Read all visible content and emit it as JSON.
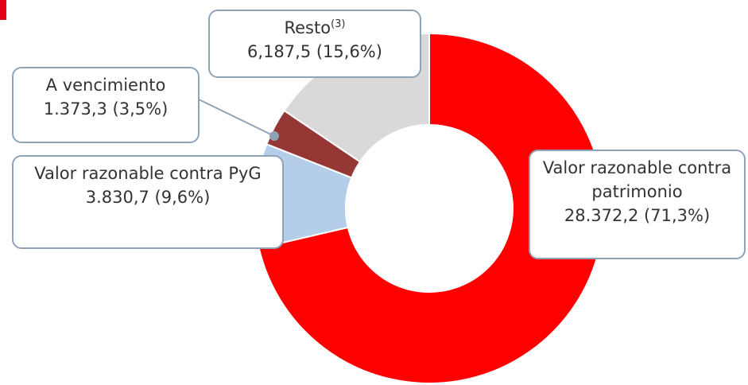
{
  "chart_data": {
    "type": "donut",
    "categories": [
      "Valor razonable contra patrimonio",
      "Valor razonable contra PyG",
      "A vencimiento",
      "Resto"
    ],
    "footnotes": [
      null,
      null,
      null,
      "(3)"
    ],
    "values": [
      28372.2,
      3830.7,
      1373.3,
      6187.5
    ],
    "value_labels": [
      "28.372,2 (71,3%)",
      "3.830,7 (9,6%)",
      "1.373,3 (3,5%)",
      "6,187,5 (15,6%)"
    ],
    "colors": [
      "#ff0000",
      "#b4cde8",
      "#953735",
      "#d9d9d9"
    ]
  }
}
